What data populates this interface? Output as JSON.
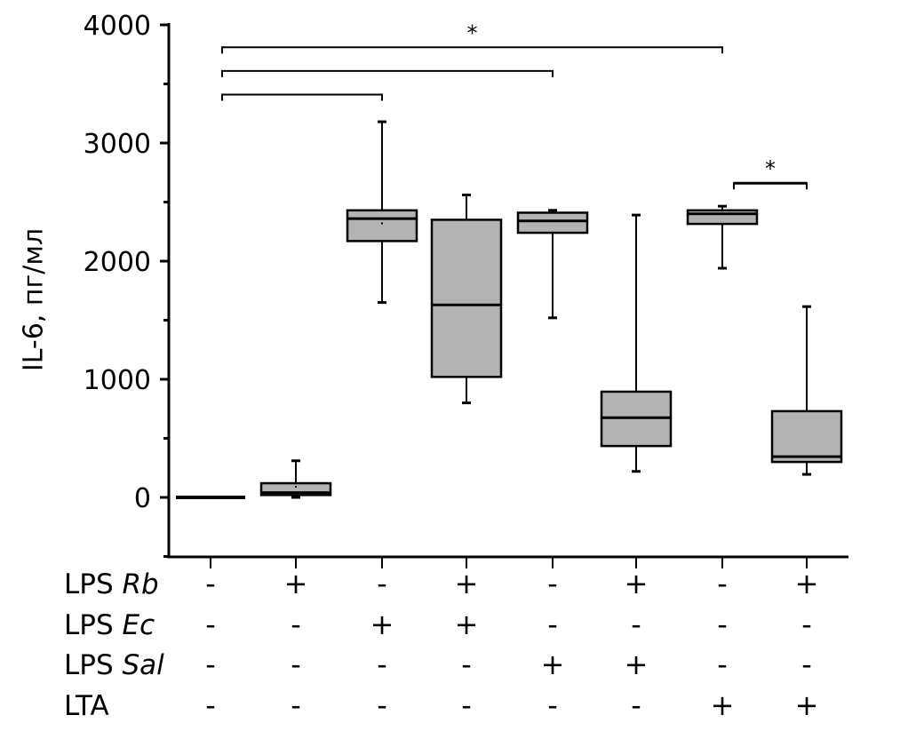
{
  "chart_data": {
    "type": "box",
    "ylabel": "IL-6, пг/мл",
    "ylim": [
      -500,
      4000
    ],
    "yticks": [
      0,
      1000,
      2000,
      3000,
      4000
    ],
    "ytick_labels": [
      "0",
      "1000",
      "2000",
      "3000",
      "4000"
    ],
    "groups": [
      {
        "min": 0,
        "q1": 0,
        "median": 0,
        "q3": 0,
        "max": 0
      },
      {
        "min": 0,
        "q1": 20,
        "median": 40,
        "q3": 120,
        "max": 310,
        "mean": 90
      },
      {
        "min": 1650,
        "q1": 2170,
        "median": 2360,
        "q3": 2430,
        "max": 3180,
        "mean": 2320
      },
      {
        "min": 800,
        "q1": 1020,
        "median": 1630,
        "q3": 2350,
        "max": 2560
      },
      {
        "min": 1520,
        "q1": 2240,
        "median": 2340,
        "q3": 2410,
        "max": 2430
      },
      {
        "min": 220,
        "q1": 435,
        "median": 675,
        "q3": 895,
        "max": 2390
      },
      {
        "min": 1940,
        "q1": 2315,
        "median": 2400,
        "q3": 2430,
        "max": 2465
      },
      {
        "min": 195,
        "q1": 300,
        "median": 345,
        "q3": 730,
        "max": 1615
      }
    ],
    "significance": [
      {
        "from": 1,
        "to": 3,
        "level": 3410,
        "label": ""
      },
      {
        "from": 1,
        "to": 5,
        "level": 3610,
        "label": ""
      },
      {
        "from": 1,
        "to": 7,
        "level": 3810,
        "label": "*"
      },
      {
        "from": 7,
        "to": 8,
        "level": 2660,
        "label": "*"
      }
    ],
    "condition_rows": [
      {
        "prefix": "LPS ",
        "italic": "Rb",
        "signs": [
          "-",
          "+",
          "-",
          "+",
          "-",
          "+",
          "-",
          "+"
        ]
      },
      {
        "prefix": "LPS ",
        "italic": "Ec",
        "signs": [
          "-",
          "-",
          "+",
          "+",
          "-",
          "-",
          "-",
          "-"
        ]
      },
      {
        "prefix": "LPS ",
        "italic": "Sal",
        "signs": [
          "-",
          "-",
          "-",
          "-",
          "+",
          "+",
          "-",
          "-"
        ]
      },
      {
        "prefix": "LTA",
        "italic": "",
        "signs": [
          "-",
          "-",
          "-",
          "-",
          "-",
          "-",
          "+",
          "+"
        ]
      }
    ],
    "colors": {
      "box": "#b3b3b3",
      "line": "#000000"
    }
  }
}
